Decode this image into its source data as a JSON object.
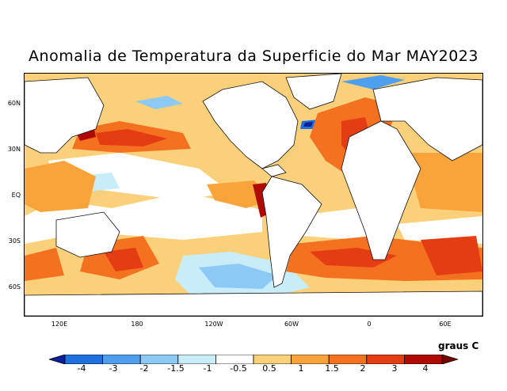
{
  "title": "Anomalia de Temperatura da Superficie do Mar MAY2023",
  "units": "graus C",
  "lat_labels": [
    "60N",
    "30N",
    "EQ",
    "30S",
    "60S"
  ],
  "lon_labels": [
    "120E",
    "180",
    "120W",
    "60W",
    "0",
    "60E"
  ],
  "colorbar": {
    "levels": [
      "-4",
      "-3",
      "-2",
      "-1.5",
      "-1",
      "-0.5",
      "0.5",
      "1",
      "1.5",
      "2",
      "3",
      "4"
    ],
    "colors": [
      "#0a1f9c",
      "#1e6fe0",
      "#4f9ff0",
      "#8ccaf5",
      "#c8ecf8",
      "#ffffff",
      "#fbd07a",
      "#f9a43b",
      "#f4711f",
      "#e43d14",
      "#b10a05",
      "#7a0000"
    ]
  },
  "colors": {
    "land": "#ffffff",
    "coast": "#111111",
    "frame": "#000000"
  }
}
